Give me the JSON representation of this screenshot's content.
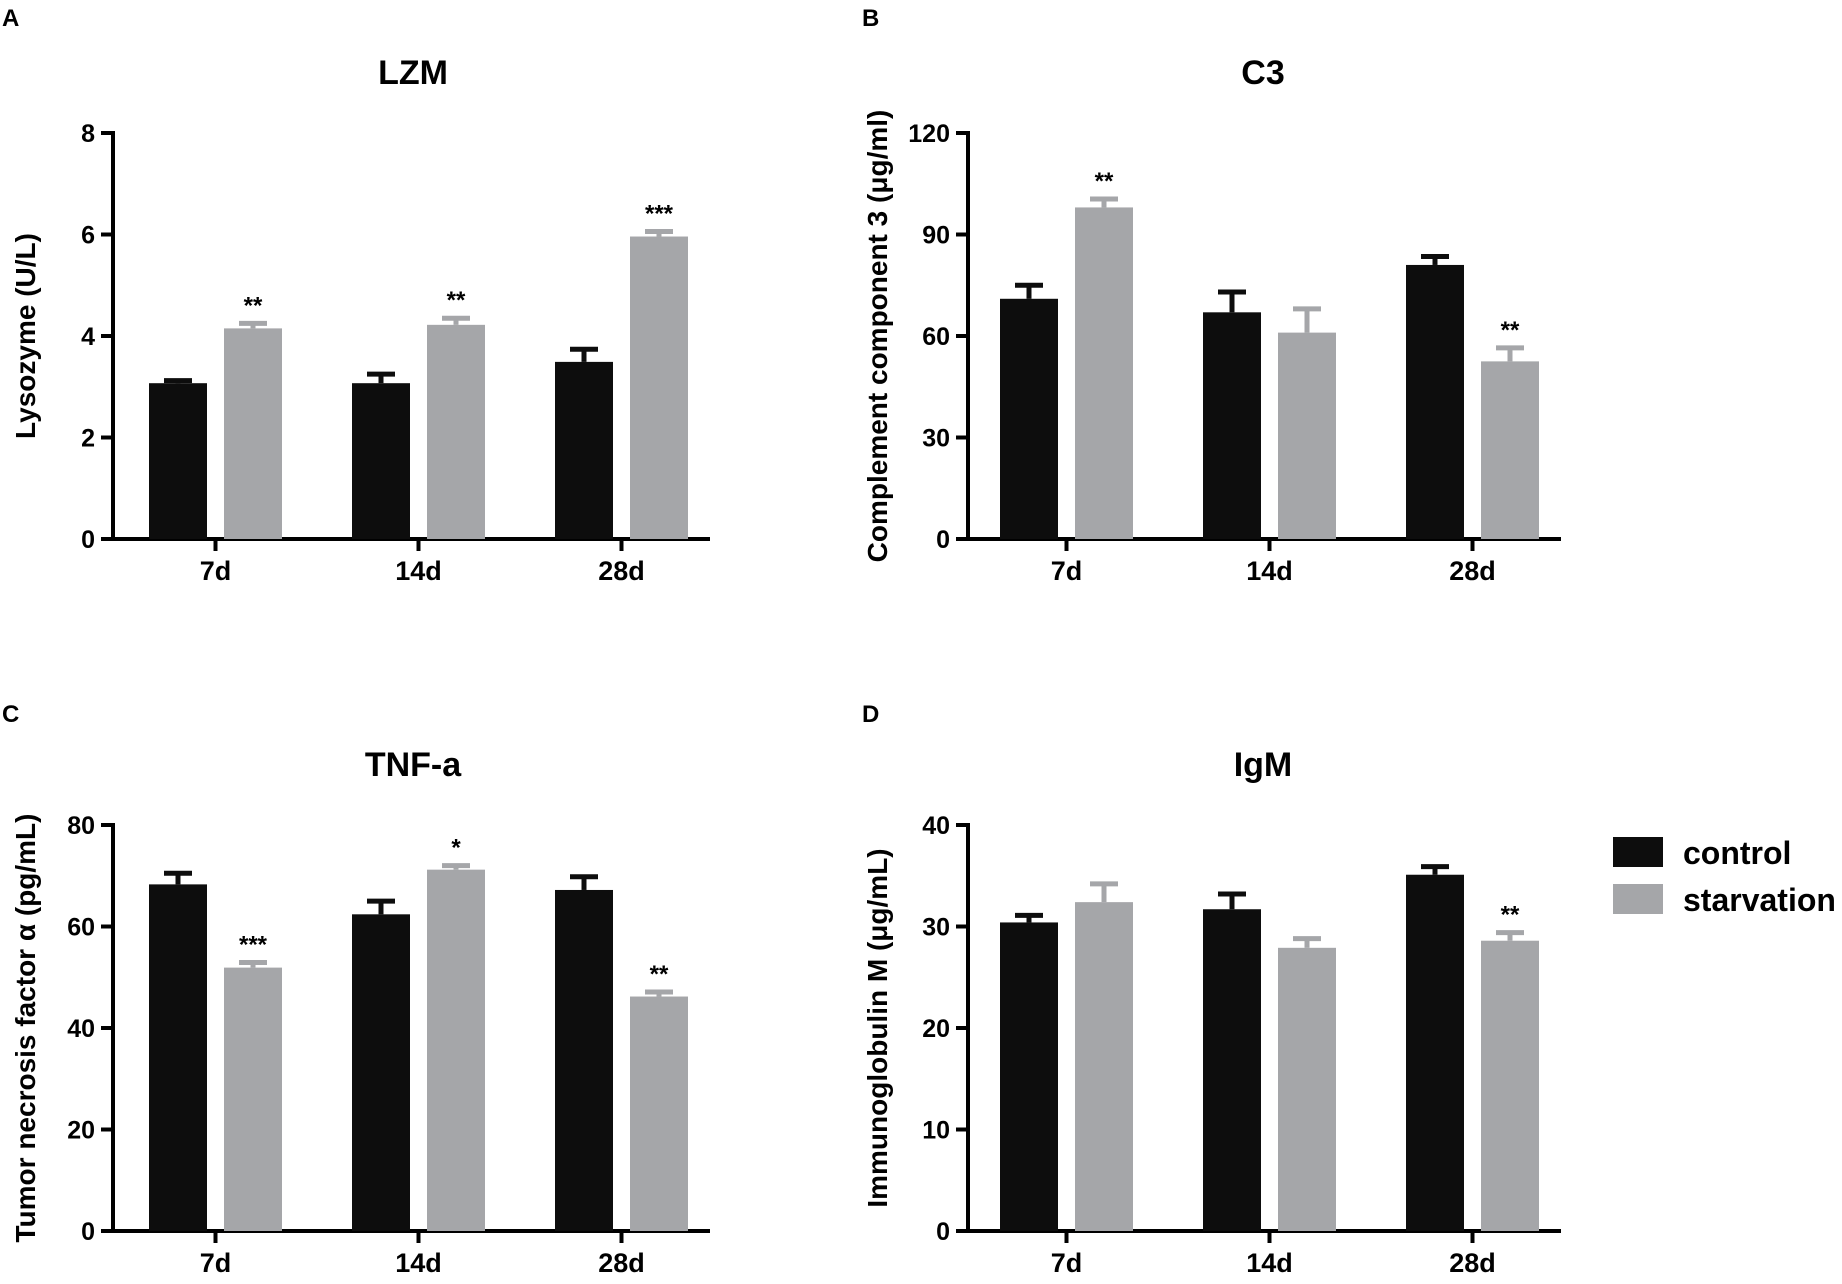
{
  "colors": {
    "control": "#0d0d0d",
    "starvation": "#a5a6a9",
    "axis": "#000000"
  },
  "legend": [
    {
      "key": "control",
      "label": "control"
    },
    {
      "key": "starvation",
      "label": "starvation"
    }
  ],
  "chart_data": [
    {
      "panel": "A",
      "type": "bar",
      "title": "LZM",
      "xlabel": "",
      "ylabel": "Lysozyme (U/L)",
      "ylim": [
        0,
        8
      ],
      "yticks": [
        0,
        2,
        4,
        6,
        8
      ],
      "categories": [
        "7d",
        "14d",
        "28d"
      ],
      "series": [
        {
          "name": "control",
          "values": [
            3.07,
            3.07,
            3.49
          ],
          "errors": [
            0.05,
            0.18,
            0.25
          ]
        },
        {
          "name": "starvation",
          "values": [
            4.15,
            4.22,
            5.96
          ],
          "errors": [
            0.1,
            0.13,
            0.1
          ]
        }
      ],
      "significance": [
        {
          "category": "7d",
          "series": "starvation",
          "label": "**"
        },
        {
          "category": "14d",
          "series": "starvation",
          "label": "**"
        },
        {
          "category": "28d",
          "series": "starvation",
          "label": "***"
        }
      ]
    },
    {
      "panel": "B",
      "type": "bar",
      "title": "C3",
      "xlabel": "",
      "ylabel": "Complement component 3 (μg/ml)",
      "ylim": [
        0,
        120
      ],
      "yticks": [
        0,
        30,
        60,
        90,
        120
      ],
      "categories": [
        "7d",
        "14d",
        "28d"
      ],
      "series": [
        {
          "name": "control",
          "values": [
            71,
            67,
            81
          ],
          "errors": [
            4,
            6,
            2.5
          ]
        },
        {
          "name": "starvation",
          "values": [
            98,
            61,
            52.5
          ],
          "errors": [
            2.5,
            7,
            4
          ]
        }
      ],
      "significance": [
        {
          "category": "7d",
          "series": "starvation",
          "label": "**"
        },
        {
          "category": "28d",
          "series": "starvation",
          "label": "**"
        }
      ]
    },
    {
      "panel": "C",
      "type": "bar",
      "title": "TNF-a",
      "xlabel": "",
      "ylabel": "Tumor necrosis factor α (pg/mL)",
      "ylim": [
        0,
        80
      ],
      "yticks": [
        0,
        20,
        40,
        60,
        80
      ],
      "categories": [
        "7d",
        "14d",
        "28d"
      ],
      "series": [
        {
          "name": "control",
          "values": [
            68.3,
            62.4,
            67.2
          ],
          "errors": [
            2.2,
            2.6,
            2.6
          ]
        },
        {
          "name": "starvation",
          "values": [
            51.9,
            71.2,
            46.2
          ],
          "errors": [
            1,
            0.8,
            0.9
          ]
        }
      ],
      "significance": [
        {
          "category": "7d",
          "series": "starvation",
          "label": "***"
        },
        {
          "category": "14d",
          "series": "starvation",
          "label": "*"
        },
        {
          "category": "28d",
          "series": "starvation",
          "label": "**"
        }
      ]
    },
    {
      "panel": "D",
      "type": "bar",
      "title": "IgM",
      "xlabel": "",
      "ylabel": "Immunoglobulin M (μg/mL)",
      "ylim": [
        0,
        40
      ],
      "yticks": [
        0,
        10,
        20,
        30,
        40
      ],
      "categories": [
        "7d",
        "14d",
        "28d"
      ],
      "series": [
        {
          "name": "control",
          "values": [
            30.4,
            31.7,
            35.1
          ],
          "errors": [
            0.7,
            1.5,
            0.8
          ]
        },
        {
          "name": "starvation",
          "values": [
            32.4,
            27.9,
            28.6
          ],
          "errors": [
            1.8,
            0.9,
            0.8
          ]
        }
      ],
      "significance": [
        {
          "category": "28d",
          "series": "starvation",
          "label": "**"
        }
      ]
    }
  ]
}
